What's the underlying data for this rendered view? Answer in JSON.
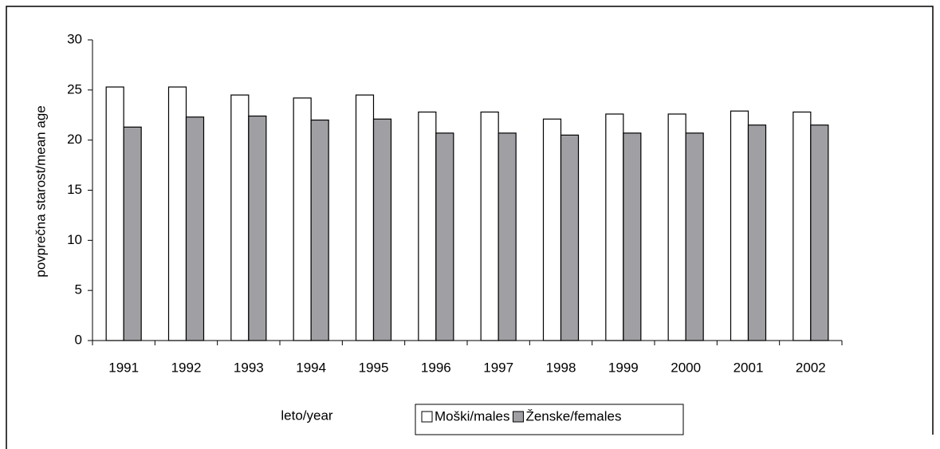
{
  "chart_data": {
    "type": "bar",
    "y_axis_label": "povprečna starost/mean age",
    "x_axis_label": "leto/year",
    "categories": [
      "1991",
      "1992",
      "1993",
      "1994",
      "1995",
      "1996",
      "1997",
      "1998",
      "1999",
      "2000",
      "2001",
      "2002"
    ],
    "series": [
      {
        "name": "Moški/males",
        "color": "#ffffff",
        "values": [
          25.3,
          25.3,
          24.5,
          24.2,
          24.5,
          22.8,
          22.8,
          22.1,
          22.6,
          22.6,
          22.9,
          22.8
        ]
      },
      {
        "name": "Ženske/females",
        "color": "#a0a0a4",
        "values": [
          21.3,
          22.3,
          22.4,
          22.0,
          22.1,
          20.7,
          20.7,
          20.5,
          20.7,
          20.7,
          21.5,
          21.5
        ]
      }
    ],
    "ylim": [
      0,
      30
    ],
    "yticks": [
      0,
      5,
      10,
      15,
      20,
      25,
      30
    ],
    "legend": "bottom"
  }
}
